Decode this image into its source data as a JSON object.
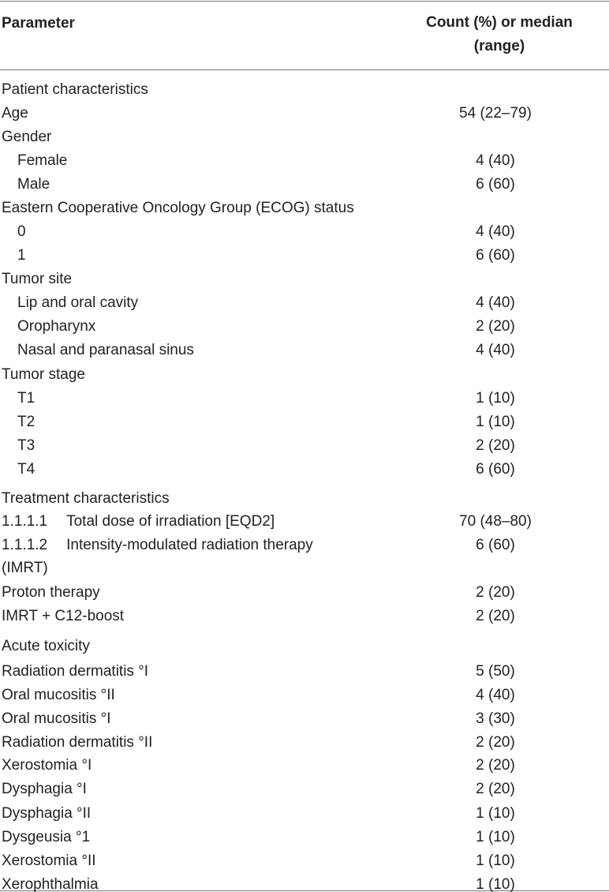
{
  "table": {
    "header": [
      "Parameter",
      "Count (%) or median (range)"
    ],
    "rows": [
      {
        "label": "Patient characteristics"
      },
      {
        "label": "Age",
        "value": "54 (22–79)"
      },
      {
        "label": "Gender"
      },
      {
        "label": "Female",
        "value": "4 (40)"
      },
      {
        "label": "Male",
        "value": "6 (60)"
      },
      {
        "label": "Eastern Cooperative Oncology Group (ECOG) status"
      },
      {
        "label": "0",
        "value": "4 (40)"
      },
      {
        "label": "1",
        "value": "6 (60)"
      },
      {
        "label": "Tumor site"
      },
      {
        "label": "Lip and oral cavity",
        "value": "4 (40)"
      },
      {
        "label": "Oropharynx",
        "value": "2 (20)"
      },
      {
        "label": "Nasal and paranasal sinus",
        "value": "4 (40)"
      },
      {
        "label": "Tumor stage"
      },
      {
        "label": "T1",
        "value": "1 (10)"
      },
      {
        "label": "T2",
        "value": "1 (10)"
      },
      {
        "label": "T3",
        "value": "2 (20)"
      },
      {
        "label": "T4",
        "value": "6 (60)"
      },
      {
        "label": "Treatment characteristics"
      },
      {
        "number": "1.1.1.1",
        "label": "Total dose of irradiation [EQD2]",
        "value": "70 (48–80)"
      },
      {
        "number": "1.1.1.2",
        "label": "Intensity-modulated radiation therapy (IMRT)",
        "value": "6 (60)"
      },
      {
        "label": "Proton therapy",
        "value": "2 (20)"
      },
      {
        "label": "IMRT + C12-boost",
        "value": "2 (20)"
      },
      {
        "label": "Acute toxicity"
      },
      {
        "label": "Radiation dermatitis °I",
        "value": "5 (50)"
      },
      {
        "label": "Oral mucositis °II",
        "value": "4 (40)"
      },
      {
        "label": "Oral mucositis °I",
        "value": "3 (30)"
      },
      {
        "label": "Radiation dermatitis °II",
        "value": "2 (20)"
      },
      {
        "label": "Xerostomia °I",
        "value": "2 (20)"
      },
      {
        "label": "Dysphagia °I",
        "value": "2 (20)"
      },
      {
        "label": "Dysphagia °II",
        "value": "1 (10)"
      },
      {
        "label": "Dysgeusia °1",
        "value": "1 (10)"
      },
      {
        "label": "Xerostomia °II",
        "value": "1 (10)"
      },
      {
        "label": "Xerophthalmia",
        "value": "1 (10)"
      }
    ]
  }
}
